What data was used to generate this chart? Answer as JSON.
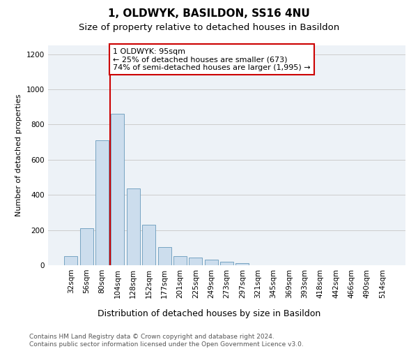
{
  "title1": "1, OLDWYK, BASILDON, SS16 4NU",
  "title2": "Size of property relative to detached houses in Basildon",
  "xlabel": "Distribution of detached houses by size in Basildon",
  "ylabel": "Number of detached properties",
  "categories": [
    "32sqm",
    "56sqm",
    "80sqm",
    "104sqm",
    "128sqm",
    "152sqm",
    "177sqm",
    "201sqm",
    "225sqm",
    "249sqm",
    "273sqm",
    "297sqm",
    "321sqm",
    "345sqm",
    "369sqm",
    "393sqm",
    "418sqm",
    "442sqm",
    "466sqm",
    "490sqm",
    "514sqm"
  ],
  "values": [
    50,
    210,
    710,
    860,
    435,
    230,
    105,
    50,
    45,
    30,
    20,
    10,
    0,
    0,
    0,
    0,
    0,
    0,
    0,
    0,
    0
  ],
  "bar_color": "#ccdded",
  "bar_edge_color": "#6699bb",
  "vline_color": "#cc0000",
  "annotation_text": "1 OLDWYK: 95sqm\n← 25% of detached houses are smaller (673)\n74% of semi-detached houses are larger (1,995) →",
  "annotation_box_color": "#ffffff",
  "annotation_box_edge": "#cc0000",
  "ylim": [
    0,
    1250
  ],
  "yticks": [
    0,
    200,
    400,
    600,
    800,
    1000,
    1200
  ],
  "grid_color": "#cccccc",
  "background_color": "#edf2f7",
  "footer_text": "Contains HM Land Registry data © Crown copyright and database right 2024.\nContains public sector information licensed under the Open Government Licence v3.0.",
  "title1_fontsize": 11,
  "title2_fontsize": 9.5,
  "xlabel_fontsize": 9,
  "ylabel_fontsize": 8,
  "tick_fontsize": 7.5,
  "annotation_fontsize": 8,
  "footer_fontsize": 6.5
}
